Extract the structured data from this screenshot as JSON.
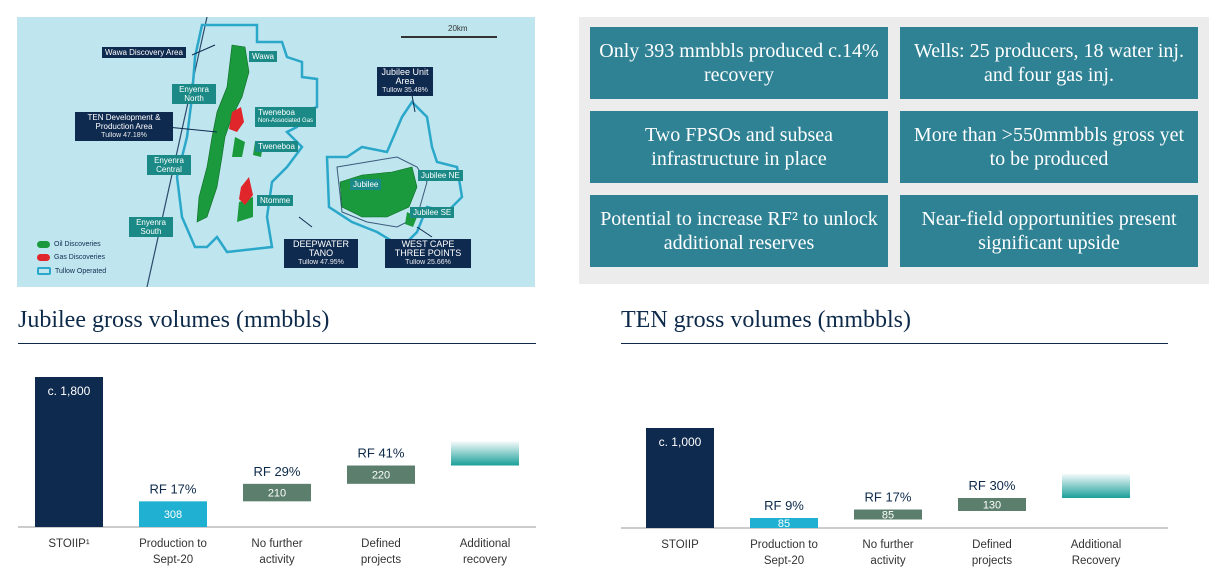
{
  "map": {
    "scale_label": "20km",
    "labels": {
      "wawa_discovery": "Wawa Discovery Area",
      "wawa": "Wawa",
      "enyenra_north": "Enyenra North",
      "ten_dev": "TEN Development & Production Area",
      "ten_dev_sub": "Tullow 47.18%",
      "tweneboa_nag": "Tweneboa",
      "tweneboa_nag_sub": "Non-Associated Gas",
      "tweneboa": "Tweneboa",
      "enyenra_central": "Enyenra Central",
      "ntomme": "Ntomme",
      "enyenra_south": "Enyenra South",
      "deepwater": "DEEPWATER TANO",
      "deepwater_sub": "Tullow 47.95%",
      "jubilee_unit": "Jubilee Unit Area",
      "jubilee_unit_sub": "Tullow 35.48%",
      "jubilee": "Jubilee",
      "jubilee_ne": "Jubilee NE",
      "jubilee_se": "Jubilee SE",
      "west_cape": "WEST CAPE THREE POINTS",
      "west_cape_sub": "Tullow 25.66%"
    },
    "legend": [
      {
        "label": "Oil Discoveries",
        "color": "#1a9a3c"
      },
      {
        "label": "Gas Discoveries",
        "color": "#e0262b"
      },
      {
        "label": "Tullow Operated",
        "color": "#2aa7c9"
      }
    ]
  },
  "facts": [
    "Only 393 mmbbls produced c.14% recovery",
    "Wells: 25 producers, 18 water inj. and four gas inj.",
    "Two FPSOs and subsea infrastructure in place",
    "More than >550mmbbls gross yet to be produced",
    "Potential to increase RF² to unlock additional reserves",
    "Near-field opportunities present significant upside"
  ],
  "chart_data": [
    {
      "type": "bar",
      "title": "Jubilee gross volumes (mmbbls)",
      "categories": [
        "STOIIP¹",
        "Production to Sept-20",
        "No further activity",
        "Defined projects",
        "Additional recovery"
      ],
      "values": [
        1800,
        308,
        210,
        220,
        null
      ],
      "base": [
        0,
        0,
        308,
        518,
        738
      ],
      "value_labels": [
        "c. 1,800",
        "308",
        "210",
        "220",
        ""
      ],
      "rf_labels": [
        "",
        "RF 17%",
        "RF 29%",
        "RF 41%",
        ""
      ],
      "colors": [
        "#0f2a4f",
        "#1fb0d2",
        "#5b7f6c",
        "#5b7f6c",
        "#1a9f99"
      ],
      "ylim": [
        0,
        1800
      ]
    },
    {
      "type": "bar",
      "title": "TEN gross volumes (mmbbls)",
      "categories": [
        "STOIIP",
        "Production to Sept-20",
        "No further activity",
        "Defined projects",
        "Additional Recovery"
      ],
      "values": [
        1000,
        85,
        85,
        130,
        null
      ],
      "base": [
        0,
        0,
        85,
        170,
        300
      ],
      "value_labels": [
        "c. 1,000",
        "85",
        "85",
        "130",
        ""
      ],
      "rf_labels": [
        "",
        "RF 9%",
        "RF 17%",
        "RF 30%",
        ""
      ],
      "colors": [
        "#0f2a4f",
        "#1fb0d2",
        "#5b7f6c",
        "#5b7f6c",
        "#1a9f99"
      ],
      "ylim": [
        0,
        1000
      ]
    }
  ]
}
